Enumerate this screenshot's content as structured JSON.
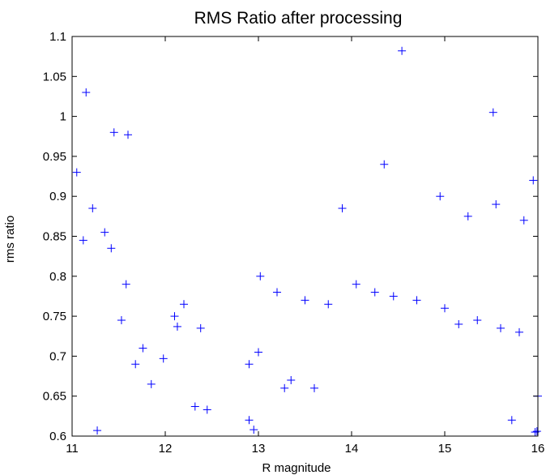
{
  "chart_data": {
    "type": "scatter",
    "title": "RMS Ratio after processing",
    "xlabel": "R magnitude",
    "ylabel": "rms ratio",
    "xlim": [
      11,
      16
    ],
    "ylim": [
      0.6,
      1.1
    ],
    "xticks": [
      "11",
      "12",
      "13",
      "14",
      "15",
      "16"
    ],
    "yticks": [
      "0.6",
      "0.65",
      "0.7",
      "0.75",
      "0.8",
      "0.85",
      "0.9",
      "0.95",
      "1",
      "1.05",
      "1.1"
    ],
    "grid": false,
    "marker": "+",
    "marker_color": "#0000ff",
    "series": [
      {
        "x": [
          11.12,
          11.27,
          14.54,
          15.52,
          14.35,
          11.05,
          11.22,
          11.15,
          11.45,
          11.6,
          11.53,
          11.35,
          11.42,
          11.76,
          11.98,
          12.32,
          12.45,
          12.9,
          12.95,
          12.13,
          12.1,
          12.38,
          11.68,
          11.85,
          11.58,
          12.2,
          13.02,
          13.2,
          13.5,
          13.75,
          14.05,
          14.25,
          14.45,
          14.7,
          15.0,
          15.15,
          15.35,
          15.6,
          15.8,
          15.95,
          15.97,
          15.99,
          15.72,
          16.0,
          15.55,
          13.28,
          13.35,
          12.9,
          13.6,
          13.0,
          15.85,
          15.25,
          14.95,
          13.9
        ],
        "y": [
          0.845,
          0.607,
          1.082,
          1.005,
          0.94,
          0.93,
          0.885,
          1.03,
          0.98,
          0.977,
          0.745,
          0.855,
          0.835,
          0.71,
          0.697,
          0.637,
          0.633,
          0.62,
          0.608,
          0.737,
          0.75,
          0.735,
          0.69,
          0.665,
          0.79,
          0.765,
          0.8,
          0.78,
          0.77,
          0.765,
          0.79,
          0.78,
          0.775,
          0.77,
          0.76,
          0.74,
          0.745,
          0.735,
          0.73,
          0.92,
          0.605,
          0.606,
          0.62,
          0.65,
          0.89,
          0.66,
          0.67,
          0.69,
          0.66,
          0.705,
          0.87,
          0.875,
          0.9,
          0.885
        ]
      }
    ]
  }
}
